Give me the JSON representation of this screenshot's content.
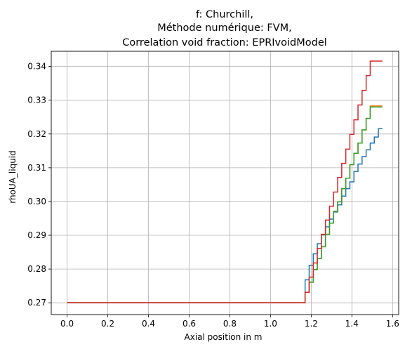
{
  "chart_data": {
    "type": "line",
    "step": true,
    "title_lines": [
      "f: Churchill,",
      "Méthode numérique: FVM,",
      "Correlation void fraction: EPRIvoidModel"
    ],
    "xlabel": "Axial position in m",
    "ylabel": "rhoUA_liquid",
    "xlim": [
      -0.078,
      1.63
    ],
    "ylim": [
      0.2665,
      0.3445
    ],
    "xticks": [
      0.0,
      0.2,
      0.4,
      0.6,
      0.8,
      1.0,
      1.2,
      1.4,
      1.6
    ],
    "xtick_labels": [
      "0.0",
      "0.2",
      "0.4",
      "0.6",
      "0.8",
      "1.0",
      "1.2",
      "1.4",
      "1.6"
    ],
    "yticks": [
      0.27,
      0.28,
      0.29,
      0.3,
      0.31,
      0.32,
      0.33,
      0.34
    ],
    "ytick_labels": [
      "0.27",
      "0.28",
      "0.29",
      "0.30",
      "0.31",
      "0.32",
      "0.33",
      "0.34"
    ],
    "grid": true,
    "series": [
      {
        "color": "#1f77b4",
        "x": [
          0.0,
          1.17,
          1.17,
          1.19,
          1.19,
          1.21,
          1.21,
          1.23,
          1.23,
          1.25,
          1.25,
          1.27,
          1.27,
          1.29,
          1.29,
          1.31,
          1.31,
          1.33,
          1.33,
          1.35,
          1.35,
          1.37,
          1.37,
          1.39,
          1.39,
          1.41,
          1.41,
          1.43,
          1.43,
          1.45,
          1.45,
          1.47,
          1.47,
          1.49,
          1.49,
          1.51,
          1.51,
          1.53,
          1.53,
          1.55
        ],
        "y": [
          0.27,
          0.27,
          0.2768,
          0.2768,
          0.2811,
          0.2811,
          0.2845,
          0.2845,
          0.2875,
          0.2875,
          0.2901,
          0.2901,
          0.2925,
          0.2925,
          0.2948,
          0.2948,
          0.2969,
          0.2969,
          0.299,
          0.299,
          0.3016,
          0.3016,
          0.3038,
          0.3038,
          0.3058,
          0.3058,
          0.3089,
          0.3089,
          0.3111,
          0.3111,
          0.3133,
          0.3133,
          0.3153,
          0.3153,
          0.3173,
          0.3173,
          0.3191,
          0.3191,
          0.3216,
          0.3216
        ]
      },
      {
        "color": "#ff7f0e",
        "x": [
          0.0,
          1.17,
          1.17,
          1.19,
          1.19,
          1.21,
          1.21,
          1.23,
          1.23,
          1.25,
          1.25,
          1.27,
          1.27,
          1.29,
          1.29,
          1.31,
          1.31,
          1.33,
          1.33,
          1.35,
          1.35,
          1.37,
          1.37,
          1.39,
          1.39,
          1.41,
          1.41,
          1.43,
          1.43,
          1.45,
          1.45,
          1.47,
          1.47,
          1.49,
          1.49,
          1.51,
          1.51,
          1.53,
          1.53,
          1.55
        ],
        "y": [
          0.27,
          0.27,
          0.2731,
          0.2731,
          0.2761,
          0.2761,
          0.2798,
          0.2798,
          0.2831,
          0.2831,
          0.2866,
          0.2866,
          0.2903,
          0.2903,
          0.2936,
          0.2936,
          0.2971,
          0.2971,
          0.2999,
          0.2999,
          0.3038,
          0.3038,
          0.3069,
          0.3069,
          0.3109,
          0.3109,
          0.3143,
          0.3143,
          0.3173,
          0.3173,
          0.3212,
          0.3212,
          0.3246,
          0.3246,
          0.3283,
          0.3283,
          0.3283,
          0.3283,
          0.3283,
          0.3283
        ]
      },
      {
        "color": "#2ca02c",
        "x": [
          0.0,
          1.17,
          1.17,
          1.19,
          1.19,
          1.21,
          1.21,
          1.23,
          1.23,
          1.25,
          1.25,
          1.27,
          1.27,
          1.29,
          1.29,
          1.31,
          1.31,
          1.33,
          1.33,
          1.35,
          1.35,
          1.37,
          1.37,
          1.39,
          1.39,
          1.41,
          1.41,
          1.43,
          1.43,
          1.45,
          1.45,
          1.47,
          1.47,
          1.49,
          1.49,
          1.51,
          1.51,
          1.53,
          1.53,
          1.55
        ],
        "y": [
          0.27,
          0.27,
          0.2731,
          0.2731,
          0.2761,
          0.2761,
          0.2798,
          0.2798,
          0.2831,
          0.2831,
          0.2866,
          0.2866,
          0.2903,
          0.2903,
          0.2936,
          0.2936,
          0.2971,
          0.2971,
          0.2999,
          0.2999,
          0.3038,
          0.3038,
          0.3069,
          0.3069,
          0.3109,
          0.3109,
          0.3143,
          0.3143,
          0.3173,
          0.3173,
          0.3212,
          0.3212,
          0.3246,
          0.3246,
          0.328,
          0.328,
          0.328,
          0.328,
          0.328,
          0.328
        ]
      },
      {
        "color": "#d62728",
        "x": [
          0.0,
          1.17,
          1.17,
          1.19,
          1.19,
          1.21,
          1.21,
          1.23,
          1.23,
          1.25,
          1.25,
          1.27,
          1.27,
          1.29,
          1.29,
          1.31,
          1.31,
          1.33,
          1.33,
          1.35,
          1.35,
          1.37,
          1.37,
          1.39,
          1.39,
          1.41,
          1.41,
          1.43,
          1.43,
          1.45,
          1.45,
          1.47,
          1.47,
          1.49,
          1.49,
          1.51,
          1.51,
          1.53,
          1.53,
          1.55
        ],
        "y": [
          0.27,
          0.27,
          0.2731,
          0.2731,
          0.2776,
          0.2776,
          0.2818,
          0.2818,
          0.2861,
          0.2861,
          0.2903,
          0.2903,
          0.2945,
          0.2945,
          0.2986,
          0.2986,
          0.3028,
          0.3028,
          0.3071,
          0.3071,
          0.3113,
          0.3113,
          0.3155,
          0.3155,
          0.3199,
          0.3199,
          0.3242,
          0.3242,
          0.3286,
          0.3286,
          0.3329,
          0.3329,
          0.3373,
          0.3373,
          0.3416,
          0.3416,
          0.3416,
          0.3416,
          0.3416,
          0.3416
        ]
      }
    ]
  }
}
